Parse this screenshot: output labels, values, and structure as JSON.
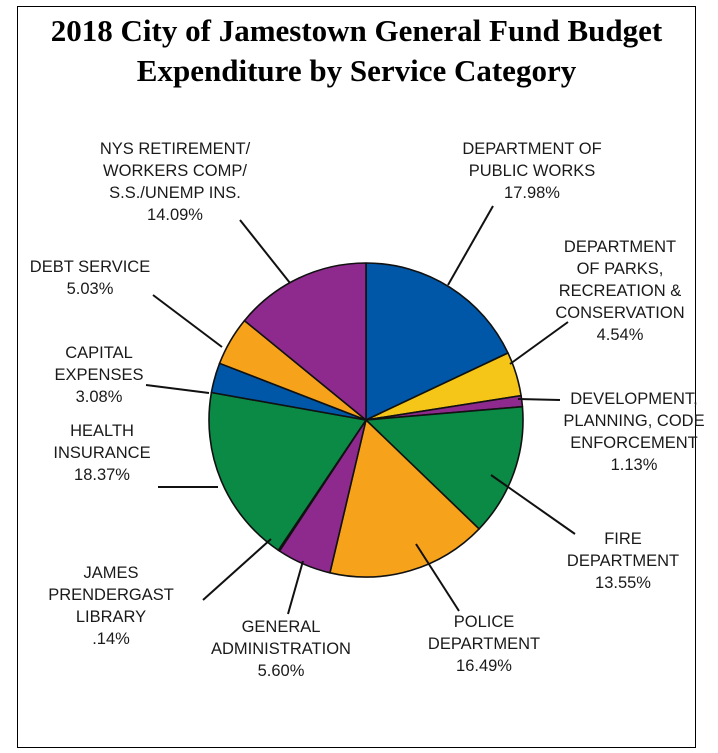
{
  "chart_data": {
    "type": "pie",
    "title": [
      "2018 City of Jamestown General Fund Budget",
      "Expenditure by Service Category"
    ],
    "slices": [
      {
        "label": [
          "DEPARTMENT OF",
          "PUBLIC WORKS"
        ],
        "value": 17.98,
        "display": "17.98%",
        "color": "#0057a8"
      },
      {
        "label": [
          "DEPARTMENT",
          "OF PARKS,",
          "RECREATION &",
          "CONSERVATION"
        ],
        "value": 4.54,
        "display": "4.54%",
        "color": "#f5c518"
      },
      {
        "label": [
          "DEVELOPMENT,",
          "PLANNING, CODE",
          "ENFORCEMENT"
        ],
        "value": 1.13,
        "display": "1.13%",
        "color": "#8e2a8e"
      },
      {
        "label": [
          "FIRE",
          "DEPARTMENT"
        ],
        "value": 13.55,
        "display": "13.55%",
        "color": "#0a8a45"
      },
      {
        "label": [
          "POLICE",
          "DEPARTMENT"
        ],
        "value": 16.49,
        "display": "16.49%",
        "color": "#f7a21b"
      },
      {
        "label": [
          "GENERAL",
          "ADMINISTRATION"
        ],
        "value": 5.6,
        "display": "5.60%",
        "color": "#8e2a8e"
      },
      {
        "label": [
          "JAMES",
          "PRENDERGAST",
          "LIBRARY"
        ],
        "value": 0.14,
        "display": ".14%",
        "color": "#0057a8"
      },
      {
        "label": [
          "HEALTH",
          "INSURANCE"
        ],
        "value": 18.37,
        "display": "18.37%",
        "color": "#0a8a45"
      },
      {
        "label": [
          "CAPITAL",
          "EXPENSES"
        ],
        "value": 3.08,
        "display": "3.08%",
        "color": "#0057a8"
      },
      {
        "label": [
          "DEBT SERVICE"
        ],
        "value": 5.03,
        "display": "5.03%",
        "color": "#f7a21b"
      },
      {
        "label": [
          "NYS RETIREMENT/",
          "WORKERS COMP/",
          "S.S./UNEMP INS."
        ],
        "value": 14.09,
        "display": "14.09%",
        "color": "#8e2a8e"
      }
    ]
  }
}
